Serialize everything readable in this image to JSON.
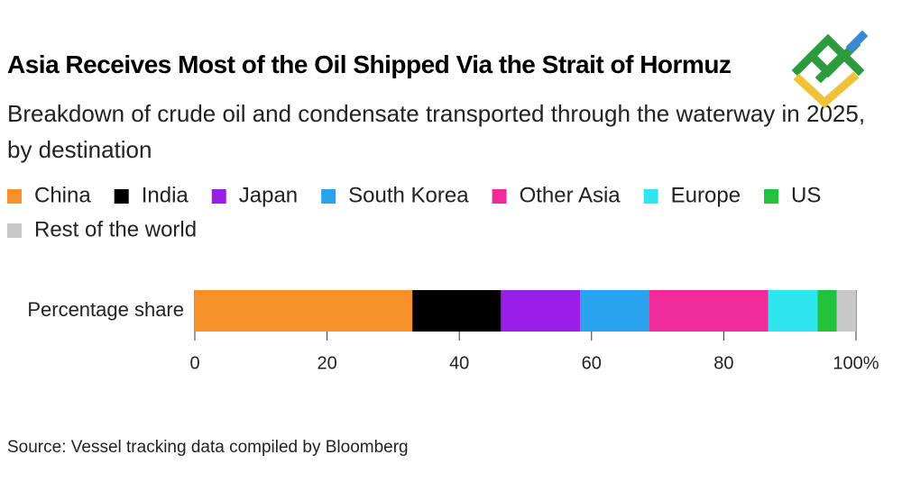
{
  "chart_data": {
    "type": "stacked_bar_horizontal",
    "title": "Asia Receives Most of the Oil Shipped Via the Strait of Hormuz",
    "subtitle": "Breakdown of crude oil and condensate transported through the waterway in 2025, by destination",
    "categories": [
      "Percentage share"
    ],
    "series": [
      {
        "name": "China",
        "color": "#f7922a",
        "values": [
          32.9
        ]
      },
      {
        "name": "India",
        "color": "#000000",
        "values": [
          13.4
        ]
      },
      {
        "name": "Japan",
        "color": "#9b1ee8",
        "values": [
          12.0
        ]
      },
      {
        "name": "South Korea",
        "color": "#2aa3ef",
        "values": [
          10.4
        ]
      },
      {
        "name": "Other Asia",
        "color": "#ef2a9a",
        "values": [
          18.0
        ]
      },
      {
        "name": "Europe",
        "color": "#2ee5f0",
        "values": [
          7.5
        ]
      },
      {
        "name": "US",
        "color": "#22c23a",
        "values": [
          2.9
        ]
      },
      {
        "name": "Rest of the world",
        "color": "#c8c8c8",
        "values": [
          2.9
        ]
      }
    ],
    "xlim": [
      0,
      100
    ],
    "xticks": [
      0,
      20,
      40,
      60,
      80,
      {
        "value": 100,
        "label": "100%"
      }
    ],
    "source": "Source: Vessel tracking data compiled by Bloomberg"
  }
}
